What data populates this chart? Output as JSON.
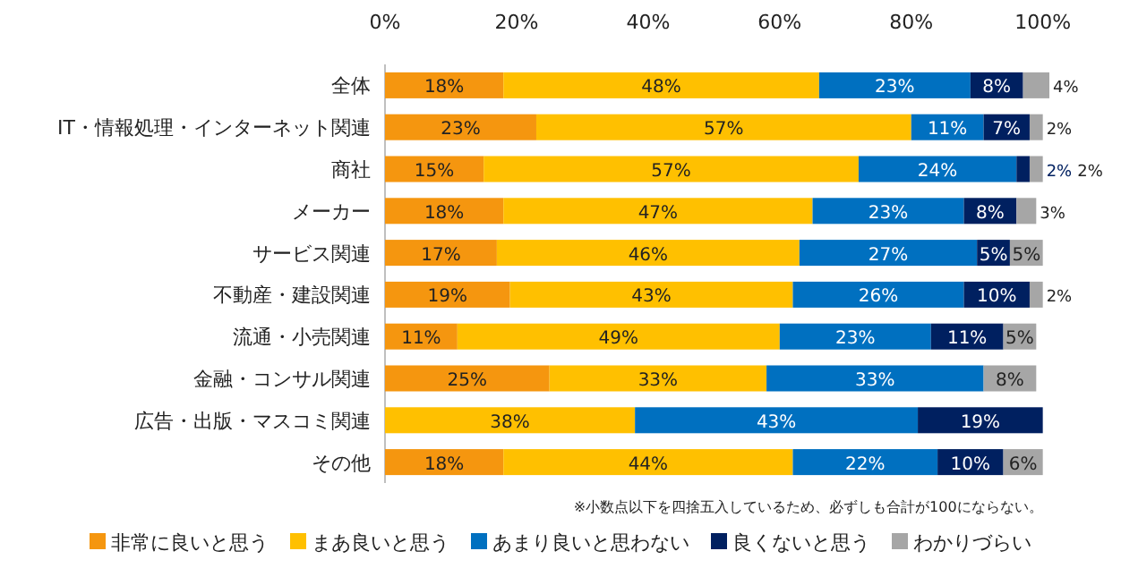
{
  "chart_data": {
    "type": "bar",
    "orientation": "horizontal",
    "stacked": true,
    "categories": [
      "全体",
      "IT・情報処理・インターネット関連",
      "商社",
      "メーカー",
      "サービス関連",
      "不動産・建設関連",
      "流通・小売関連",
      "金融・コンサル関連",
      "広告・出版・マスコミ関連",
      "その他"
    ],
    "series": [
      {
        "name": "非常に良いと思う",
        "color": "#f5960f",
        "values": [
          18,
          23,
          15,
          18,
          17,
          19,
          11,
          25,
          null,
          18
        ],
        "value_labels": [
          "18%",
          "23%",
          "15%",
          "18%",
          "17%",
          "19%",
          "11%",
          "25%",
          null,
          "18%"
        ]
      },
      {
        "name": "まあ良いと思う",
        "color": "#ffc000",
        "values": [
          48,
          57,
          57,
          47,
          46,
          43,
          49,
          33,
          38,
          44
        ],
        "value_labels": [
          "48%",
          "57%",
          "57%",
          "47%",
          "46%",
          "43%",
          "49%",
          "33%",
          "38%",
          "44%"
        ]
      },
      {
        "name": "あまり良いと思わない",
        "color": "#0070c0",
        "values": [
          23,
          11,
          24,
          23,
          27,
          26,
          23,
          33,
          43,
          22
        ],
        "value_labels": [
          "23%",
          "11%",
          "24%",
          "23%",
          "27%",
          "26%",
          "23%",
          "33%",
          "43%",
          "22%"
        ]
      },
      {
        "name": "良くないと思う",
        "color": "#002060",
        "values": [
          8,
          7,
          2,
          8,
          5,
          10,
          11,
          null,
          19,
          10
        ],
        "value_labels": [
          "8%",
          "7%",
          "2%",
          "8%",
          "5%",
          "10%",
          "11%",
          null,
          "19%",
          "10%"
        ]
      },
      {
        "name": "わかりづらい",
        "color": "#a6a6a6",
        "values": [
          4,
          2,
          2,
          3,
          5,
          2,
          5,
          8,
          null,
          6
        ],
        "value_labels": [
          "4%",
          "2%",
          "2%",
          "3%",
          "5%",
          "2%",
          "5%",
          "8%",
          null,
          "6%"
        ]
      }
    ],
    "xlim": [
      0,
      101
    ],
    "xticks": [
      {
        "value": 0,
        "label": "0%"
      },
      {
        "value": 20,
        "label": "20%"
      },
      {
        "value": 40,
        "label": "40%"
      },
      {
        "value": 60,
        "label": "60%"
      },
      {
        "value": 80,
        "label": "80%"
      },
      {
        "value": 100,
        "label": "100%"
      }
    ],
    "legend": "bottom",
    "annotations": [
      "※小数点以下を四捨五入しているため、必ずしも合計が100にならない。"
    ]
  }
}
